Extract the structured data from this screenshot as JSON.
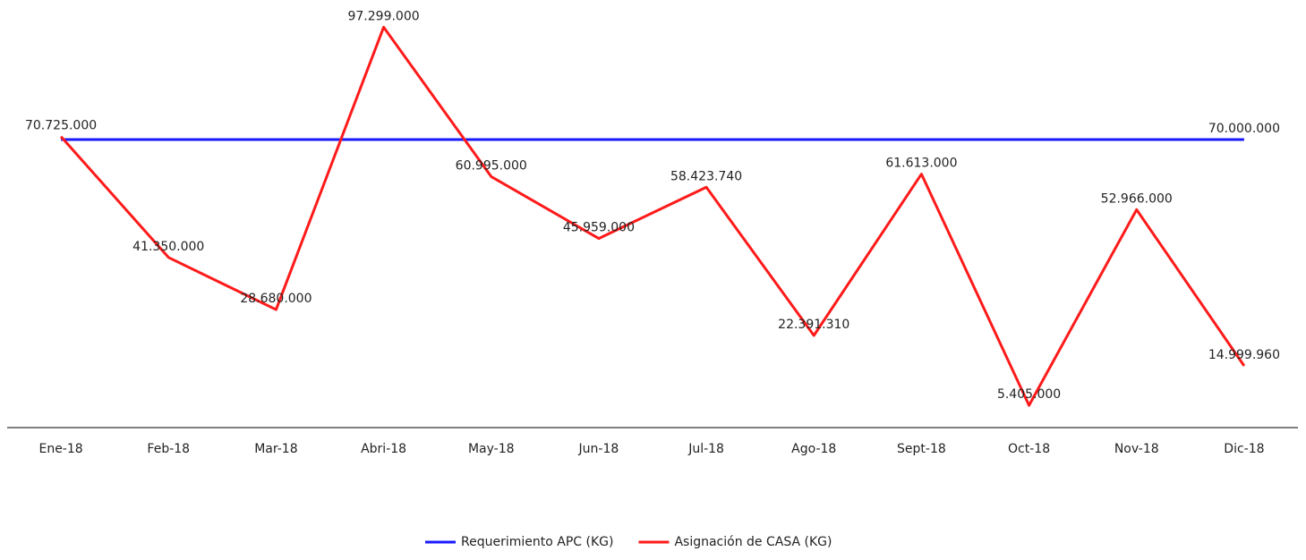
{
  "chart_data": {
    "type": "line",
    "categories": [
      "Ene-18",
      "Feb-18",
      "Mar-18",
      "Abri-18",
      "May-18",
      "Jun-18",
      "Jul-18",
      "Ago-18",
      "Sept-18",
      "Oct-18",
      "Nov-18",
      "Dic-18"
    ],
    "series": [
      {
        "name": "Requerimiento APC (KG)",
        "color": "#1a1aff",
        "values": [
          70000000,
          70000000,
          70000000,
          70000000,
          70000000,
          70000000,
          70000000,
          70000000,
          70000000,
          70000000,
          70000000,
          70000000
        ],
        "value_labels": [
          null,
          null,
          null,
          null,
          null,
          null,
          null,
          null,
          null,
          null,
          null,
          "70.000.000"
        ]
      },
      {
        "name": "Asignación de CASA (KG)",
        "color": "#ff1a1a",
        "values": [
          70725000,
          41350000,
          28680000,
          97299000,
          60995000,
          45959000,
          58423740,
          22391310,
          61613000,
          5405000,
          52966000,
          14999960
        ],
        "value_labels": [
          "70.725.000",
          "41.350.000",
          "28.680.000",
          "97.299.000",
          "60.995.000",
          "45.959.000",
          "58.423.740",
          "22.391.310",
          "61.613.000",
          "5.405.000",
          "52.966.000",
          "14.999.960"
        ]
      }
    ],
    "ylim": [
      0,
      100000000
    ],
    "legend": "bottom"
  }
}
